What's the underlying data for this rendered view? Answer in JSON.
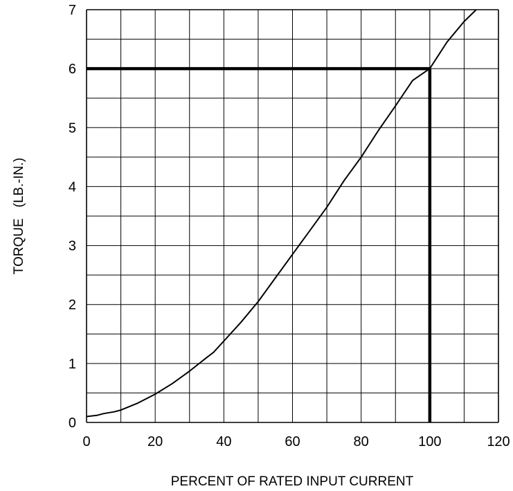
{
  "chart_data": {
    "type": "line",
    "title": "",
    "xlabel": "PERCENT OF RATED INPUT CURRENT",
    "ylabel": "TORQUE   (LB.-IN.)",
    "xlim": [
      0,
      120
    ],
    "ylim": [
      0,
      7
    ],
    "x_ticks": [
      "0",
      "20",
      "40",
      "60",
      "80",
      "100",
      "120"
    ],
    "y_ticks": [
      "0",
      "1",
      "2",
      "3",
      "4",
      "5",
      "6",
      "7"
    ],
    "grid": true,
    "x_minor_step": 10,
    "y_minor_step": 0.5,
    "series": [
      {
        "color": "#000000",
        "points": [
          [
            0,
            0.1
          ],
          [
            3,
            0.12
          ],
          [
            5,
            0.15
          ],
          [
            8,
            0.18
          ],
          [
            10,
            0.21
          ],
          [
            15,
            0.33
          ],
          [
            20,
            0.48
          ],
          [
            25,
            0.66
          ],
          [
            30,
            0.87
          ],
          [
            35,
            1.1
          ],
          [
            37,
            1.19
          ],
          [
            40,
            1.38
          ],
          [
            45,
            1.7
          ],
          [
            50,
            2.05
          ],
          [
            55,
            2.45
          ],
          [
            60,
            2.85
          ],
          [
            65,
            3.25
          ],
          [
            70,
            3.65
          ],
          [
            75,
            4.1
          ],
          [
            80,
            4.5
          ],
          [
            85,
            4.95
          ],
          [
            90,
            5.37
          ],
          [
            95,
            5.8
          ],
          [
            100,
            6.0
          ],
          [
            105,
            6.45
          ],
          [
            110,
            6.8
          ],
          [
            113.5,
            7.0
          ]
        ]
      }
    ],
    "reference_point": {
      "x": 100,
      "y": 6
    },
    "reference_color": "#000000"
  }
}
